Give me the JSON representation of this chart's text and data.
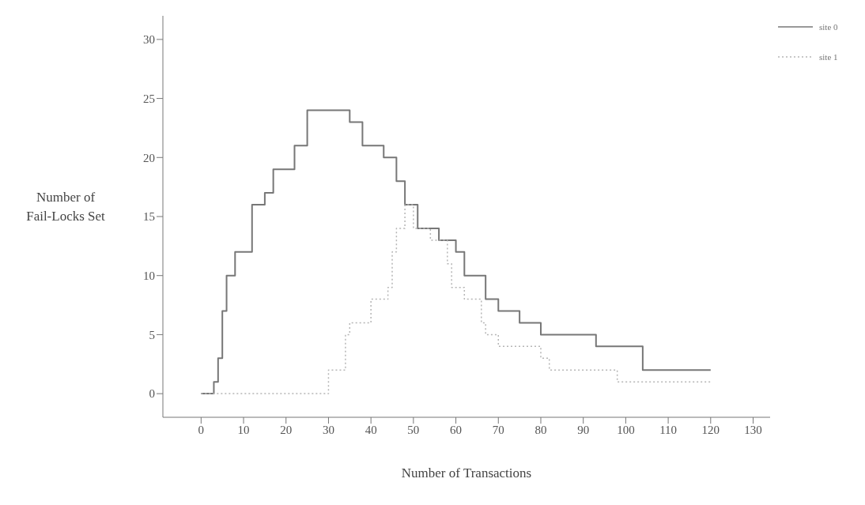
{
  "chart_data": {
    "type": "step",
    "xlabel": "Number of Transactions",
    "ylabel": "Number of Fail-Locks Set",
    "xlim": [
      -9,
      134
    ],
    "xticks": [
      0,
      10,
      20,
      30,
      40,
      50,
      60,
      70,
      80,
      90,
      100,
      110,
      120,
      130
    ],
    "ylim": [
      -2,
      32
    ],
    "yticks": [
      0,
      5,
      10,
      15,
      20,
      25,
      30
    ],
    "grid": false,
    "legend": "top right",
    "marker": "none",
    "series": [
      {
        "name": "site 0",
        "color": "#777777",
        "line_style": "solid",
        "x": [
          0,
          3,
          4,
          5,
          6,
          8,
          12,
          15,
          17,
          22,
          25,
          35,
          38,
          43,
          46,
          48,
          51,
          56,
          60,
          62,
          67,
          70,
          75,
          80,
          93,
          104,
          120
        ],
        "values": [
          0,
          1,
          3,
          7,
          10,
          12,
          16,
          17,
          19,
          21,
          24,
          23,
          21,
          20,
          18,
          16,
          14,
          13,
          12,
          10,
          8,
          7,
          6,
          5,
          4,
          2,
          2
        ]
      },
      {
        "name": "site 1",
        "color": "#b5b5b5",
        "line_style": "dotted",
        "x": [
          0,
          30,
          34,
          35,
          40,
          44,
          45,
          46,
          48,
          50,
          54,
          58,
          59,
          62,
          66,
          67,
          70,
          80,
          82,
          98,
          120
        ],
        "values": [
          0,
          2,
          5,
          6,
          8,
          9,
          12,
          14,
          16,
          14,
          13,
          11,
          9,
          8,
          6,
          5,
          4,
          3,
          2,
          1,
          1
        ]
      }
    ]
  }
}
